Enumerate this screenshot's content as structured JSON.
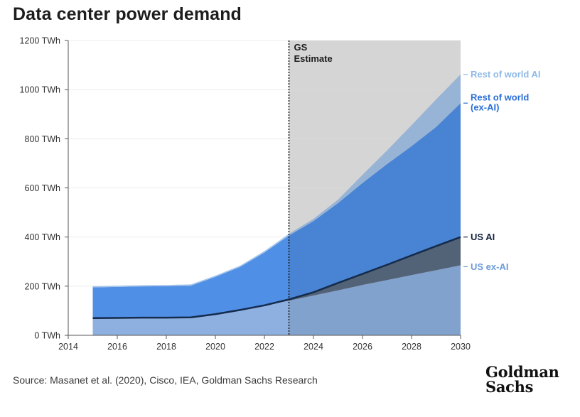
{
  "title": "Data center power demand",
  "source": "Source: Masanet et al. (2020), Cisco, IEA, Goldman Sachs Research",
  "logo": {
    "line1": "Goldman",
    "line2": "Sachs"
  },
  "colors": {
    "us_ex_ai": "#8eb0e0",
    "us_ai": "#5a6b82",
    "rest_ex_ai": "#4f8fe6",
    "rest_ai": "#a4c3e8",
    "us_ai_line": "#142b4c",
    "estimate_bg": "#e8e8e8",
    "label_rest_ai": "#8fb9e8",
    "label_rest_ex_ai": "#2a6fd6",
    "label_us_ai": "#14243d",
    "label_us_ex_ai": "#6d9ad8"
  },
  "chart_data": {
    "type": "area",
    "stacked": true,
    "x": [
      2015,
      2016,
      2017,
      2018,
      2019,
      2020,
      2021,
      2022,
      2023,
      2024,
      2025,
      2026,
      2027,
      2028,
      2029,
      2030
    ],
    "xlim": [
      2014,
      2030
    ],
    "x_ticks": [
      "2014",
      "2016",
      "2018",
      "2020",
      "2022",
      "2024",
      "2026",
      "2028",
      "2030"
    ],
    "ylim": [
      0,
      1200
    ],
    "y_ticks": [
      "0 TWh",
      "200 TWh",
      "400 TWh",
      "600 TWh",
      "800 TWh",
      "1000 TWh",
      "1200 TWh"
    ],
    "estimate_start": 2023,
    "estimate_label_line1": "GS",
    "estimate_label_line2": "Estimate",
    "series": [
      {
        "name": "US ex-AI",
        "values": [
          70,
          71,
          72,
          72,
          73,
          86,
          103,
          122,
          141,
          162,
          183,
          205,
          225,
          245,
          265,
          285
        ]
      },
      {
        "name": "US AI",
        "values": [
          0,
          0,
          0,
          0,
          0,
          0,
          0,
          0,
          5,
          13,
          30,
          45,
          62,
          80,
          98,
          115
        ]
      },
      {
        "name": "Rest of world (ex-AI)",
        "values": [
          125,
          126,
          127,
          128,
          129,
          152,
          175,
          215,
          260,
          290,
          325,
          370,
          410,
          445,
          485,
          545
        ]
      },
      {
        "name": "Rest of world AI",
        "values": [
          5,
          5,
          5,
          5,
          5,
          5,
          5,
          6,
          7,
          9,
          14,
          33,
          55,
          85,
          112,
          117
        ]
      }
    ],
    "labels": {
      "rest_ai": "Rest of world AI",
      "rest_ex_ai_line1": "Rest of world",
      "rest_ex_ai_line2": "(ex-AI)",
      "us_ai": "US AI",
      "us_ex_ai": "US ex-AI"
    }
  }
}
